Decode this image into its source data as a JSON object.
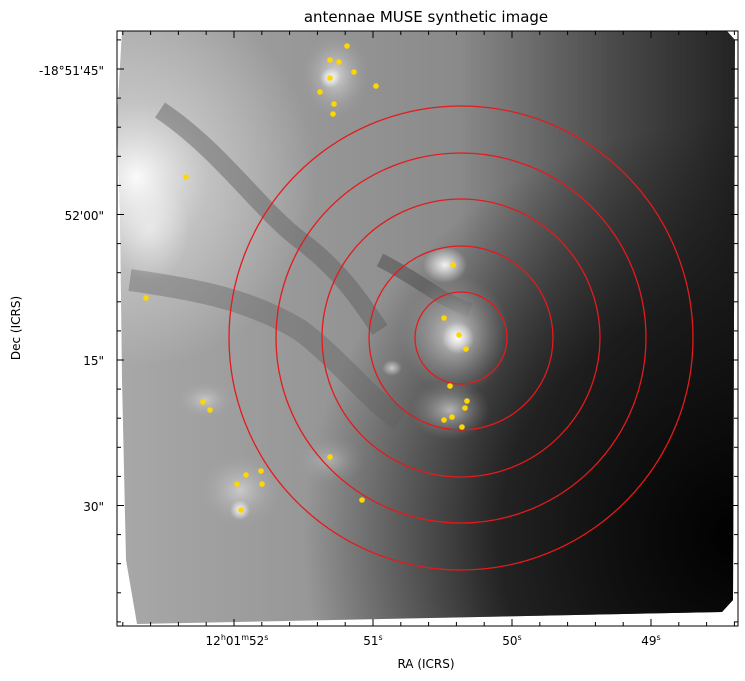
{
  "figure": {
    "title": "antennae MUSE synthetic image",
    "xlabel": "RA (ICRS)",
    "ylabel": "Dec (ICRS)"
  },
  "ra_ticks": [
    {
      "main": "12",
      "u1": "h",
      "mid": "01",
      "u2": "m",
      "sec": "52",
      "u3": "s",
      "value_s": 52
    },
    {
      "main": "51",
      "u1": "s",
      "value_s": 51
    },
    {
      "main": "50",
      "u1": "s",
      "value_s": 50
    },
    {
      "main": "49",
      "u1": "s",
      "value_s": 49
    }
  ],
  "dec_ticks": [
    {
      "label": "-18°51'45\"",
      "value_arcsec": -45
    },
    {
      "label": "52'00\"",
      "value_arcsec": 0
    },
    {
      "label": "15\"",
      "value_arcsec": 15
    },
    {
      "label": "30\"",
      "value_arcsec": 30
    }
  ],
  "overlays": {
    "ring_color": "#e41a1c",
    "ring_count": 5,
    "source_color": "#ffd700"
  },
  "colormap": "grayscale"
}
